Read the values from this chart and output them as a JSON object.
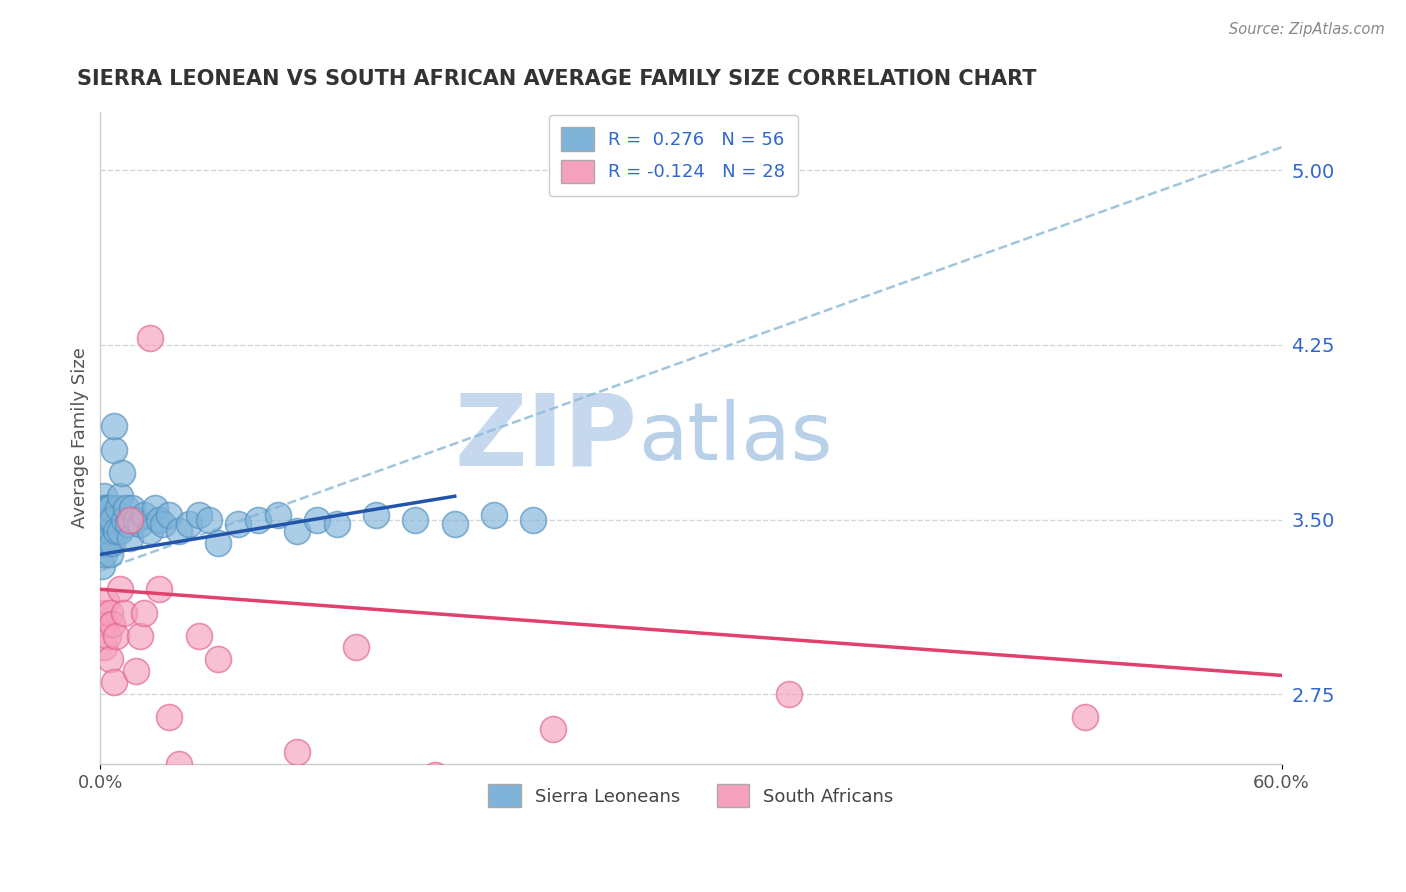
{
  "title": "SIERRA LEONEAN VS SOUTH AFRICAN AVERAGE FAMILY SIZE CORRELATION CHART",
  "source_text": "Source: ZipAtlas.com",
  "ylabel": "Average Family Size",
  "xlim": [
    0.0,
    0.6
  ],
  "ylim": [
    2.45,
    5.25
  ],
  "yticks": [
    2.75,
    3.5,
    4.25,
    5.0
  ],
  "yticklabels_right": [
    "2.75",
    "3.50",
    "4.25",
    "5.00"
  ],
  "legend_r1": "R =  0.276   N = 56",
  "legend_r2": "R = -0.124   N = 28",
  "blue_dot_color": "#7fb3d8",
  "blue_dot_edge": "#5090c0",
  "pink_dot_color": "#f5a0bc",
  "pink_dot_edge": "#e06090",
  "blue_line_color": "#2255aa",
  "pink_line_color": "#e0406e",
  "blue_dash_color": "#90bcd8",
  "watermark_zip": "ZIP",
  "watermark_atlas": "atlas",
  "watermark_color_zip": "#c5d8ee",
  "watermark_color_atlas": "#b8d0e8",
  "title_color": "#333333",
  "axis_label_color": "#555555",
  "tick_color_right": "#3366cc",
  "grid_color": "#cccccc",
  "background_color": "#ffffff",
  "blue_sl_x": [
    0.0005,
    0.001,
    0.001,
    0.0015,
    0.002,
    0.002,
    0.002,
    0.003,
    0.003,
    0.003,
    0.003,
    0.004,
    0.004,
    0.004,
    0.005,
    0.005,
    0.005,
    0.005,
    0.006,
    0.006,
    0.007,
    0.007,
    0.008,
    0.009,
    0.01,
    0.01,
    0.011,
    0.012,
    0.013,
    0.014,
    0.015,
    0.016,
    0.018,
    0.02,
    0.022,
    0.025,
    0.028,
    0.03,
    0.032,
    0.035,
    0.04,
    0.045,
    0.05,
    0.055,
    0.06,
    0.07,
    0.08,
    0.09,
    0.1,
    0.11,
    0.12,
    0.14,
    0.16,
    0.18,
    0.2,
    0.22
  ],
  "blue_sl_y": [
    3.45,
    3.55,
    3.3,
    3.5,
    3.6,
    3.4,
    3.35,
    3.5,
    3.55,
    3.4,
    3.45,
    3.55,
    3.4,
    3.5,
    3.45,
    3.35,
    3.5,
    3.55,
    3.4,
    3.5,
    3.8,
    3.9,
    3.45,
    3.55,
    3.45,
    3.6,
    3.7,
    3.5,
    3.55,
    3.48,
    3.42,
    3.55,
    3.5,
    3.48,
    3.52,
    3.45,
    3.55,
    3.5,
    3.48,
    3.52,
    3.45,
    3.48,
    3.52,
    3.5,
    3.4,
    3.48,
    3.5,
    3.52,
    3.45,
    3.5,
    3.48,
    3.52,
    3.5,
    3.48,
    3.52,
    3.5
  ],
  "pink_sa_x": [
    0.001,
    0.002,
    0.002,
    0.003,
    0.004,
    0.005,
    0.005,
    0.006,
    0.007,
    0.008,
    0.01,
    0.012,
    0.015,
    0.018,
    0.02,
    0.022,
    0.025,
    0.03,
    0.035,
    0.04,
    0.05,
    0.06,
    0.1,
    0.13,
    0.17,
    0.23,
    0.35,
    0.5
  ],
  "pink_sa_y": [
    3.1,
    3.05,
    2.95,
    3.15,
    3.0,
    3.1,
    2.9,
    3.05,
    2.8,
    3.0,
    3.2,
    3.1,
    3.5,
    2.85,
    3.0,
    3.1,
    4.28,
    3.2,
    2.65,
    2.45,
    3.0,
    2.9,
    2.5,
    2.95,
    2.4,
    2.6,
    2.75,
    2.65
  ],
  "blue_line_x0": 0.0,
  "blue_line_y0": 3.35,
  "blue_line_x1": 0.18,
  "blue_line_y1": 3.6,
  "pink_line_x0": 0.0,
  "pink_line_y0": 3.2,
  "pink_line_x1": 0.6,
  "pink_line_y1": 2.83,
  "dash_line_x0": 0.0,
  "dash_line_y0": 3.28,
  "dash_line_x1": 0.6,
  "dash_line_y1": 5.1
}
